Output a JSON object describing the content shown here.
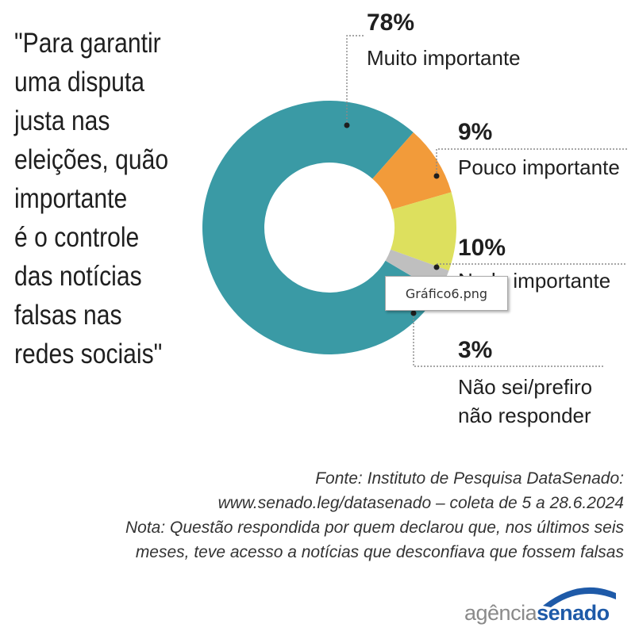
{
  "question": {
    "lines": [
      "\"Para garantir",
      "uma disputa",
      "justa nas",
      "eleições, quão",
      "importante",
      "é o controle",
      "das notícias",
      "falsas nas",
      "redes sociais\""
    ]
  },
  "chart_data": {
    "type": "pie",
    "subtype": "donut",
    "title": "\"Para garantir uma disputa justa nas eleições, quão importante é o controle das notícias falsas nas redes sociais\"",
    "slices": [
      {
        "label_lines": [
          "Muito importante"
        ],
        "value": 78,
        "value_label": "78%",
        "color": "#3a9aa5"
      },
      {
        "label_lines": [
          "Pouco importante"
        ],
        "value": 9,
        "value_label": "9%",
        "color": "#f29b3a"
      },
      {
        "label_lines": [
          "Nada importante"
        ],
        "value": 10,
        "value_label": "10%",
        "color": "#dde05e"
      },
      {
        "label_lines": [
          "Não sei/prefiro",
          "não responder"
        ],
        "value": 3,
        "value_label": "3%",
        "color": "#bfbfbf"
      }
    ]
  },
  "tooltip": {
    "text": "Gráfico6.png"
  },
  "source": {
    "lines": [
      "Fonte: Instituto de Pesquisa DataSenado:",
      "www.senado.leg/datasenado – coleta de 5 a 28.6.2024",
      "Nota: Questão respondida por quem declarou que, nos últimos seis",
      "meses, teve acesso a notícias que desconfiava que fossem falsas"
    ]
  },
  "logo": {
    "part1": "agência",
    "part2": "senado",
    "arc_color": "#1e5aa8"
  }
}
